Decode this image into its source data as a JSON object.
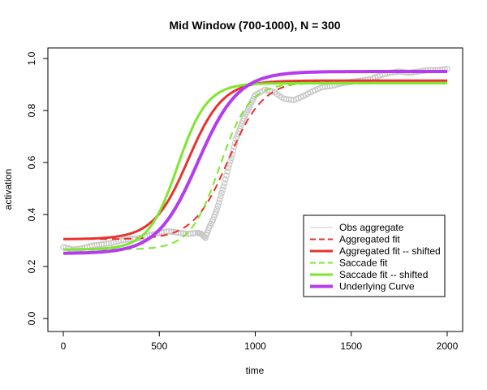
{
  "chart_data": {
    "type": "line",
    "title": "Mid Window (700-1000), N = 300",
    "xlabel": "time",
    "ylabel": "activation",
    "xlim": [
      0,
      2000
    ],
    "ylim": [
      0.0,
      1.0
    ],
    "x_ticks": [
      0,
      500,
      1000,
      1500,
      2000
    ],
    "y_ticks": [
      0.0,
      0.2,
      0.4,
      0.6,
      0.8,
      1.0
    ],
    "x_tick_labels": [
      "0",
      "500",
      "1000",
      "1500",
      "2000"
    ],
    "y_tick_labels": [
      "0.0",
      "0.2",
      "0.4",
      "0.6",
      "0.8",
      "1.0"
    ],
    "grid": false,
    "legend_position": "bottom-right",
    "series": [
      {
        "name": "Obs aggregate",
        "style": "points",
        "color": "#c8c8c8",
        "x": [
          0,
          50,
          100,
          150,
          200,
          250,
          300,
          350,
          400,
          450,
          500,
          550,
          600,
          650,
          700,
          720,
          740,
          760,
          780,
          800,
          820,
          840,
          860,
          880,
          900,
          920,
          940,
          960,
          980,
          1000,
          1050,
          1100,
          1150,
          1200,
          1250,
          1300,
          1350,
          1400,
          1450,
          1500,
          1550,
          1600,
          1650,
          1700,
          1750,
          1800,
          1850,
          1900,
          1950,
          2000
        ],
        "y": [
          0.275,
          0.265,
          0.27,
          0.28,
          0.285,
          0.29,
          0.3,
          0.305,
          0.31,
          0.32,
          0.33,
          0.335,
          0.33,
          0.325,
          0.33,
          0.325,
          0.31,
          0.35,
          0.38,
          0.42,
          0.47,
          0.52,
          0.58,
          0.63,
          0.69,
          0.73,
          0.77,
          0.8,
          0.83,
          0.86,
          0.88,
          0.87,
          0.845,
          0.84,
          0.855,
          0.875,
          0.89,
          0.895,
          0.905,
          0.91,
          0.915,
          0.92,
          0.935,
          0.945,
          0.95,
          0.945,
          0.95,
          0.955,
          0.955,
          0.96
        ]
      },
      {
        "name": "Aggregated fit",
        "style": "dashed",
        "color": "#e8332d",
        "base": 0.305,
        "peak": 0.915,
        "crossover": 860,
        "slope": 0.011
      },
      {
        "name": "Aggregated fit -- shifted",
        "style": "solid",
        "color": "#e8332d",
        "base": 0.305,
        "peak": 0.915,
        "crossover": 650,
        "slope": 0.011
      },
      {
        "name": "Saccade fit",
        "style": "dashed",
        "color": "#7ee62d",
        "base": 0.265,
        "peak": 0.905,
        "crossover": 815,
        "slope": 0.013
      },
      {
        "name": "Saccade fit -- shifted",
        "style": "solid",
        "color": "#7ee62d",
        "base": 0.265,
        "peak": 0.905,
        "crossover": 595,
        "slope": 0.013
      },
      {
        "name": "Underlying Curve",
        "style": "solid-thick",
        "color": "#b43cf0",
        "base": 0.25,
        "peak": 0.95,
        "crossover": 700,
        "slope": 0.0095
      }
    ]
  }
}
